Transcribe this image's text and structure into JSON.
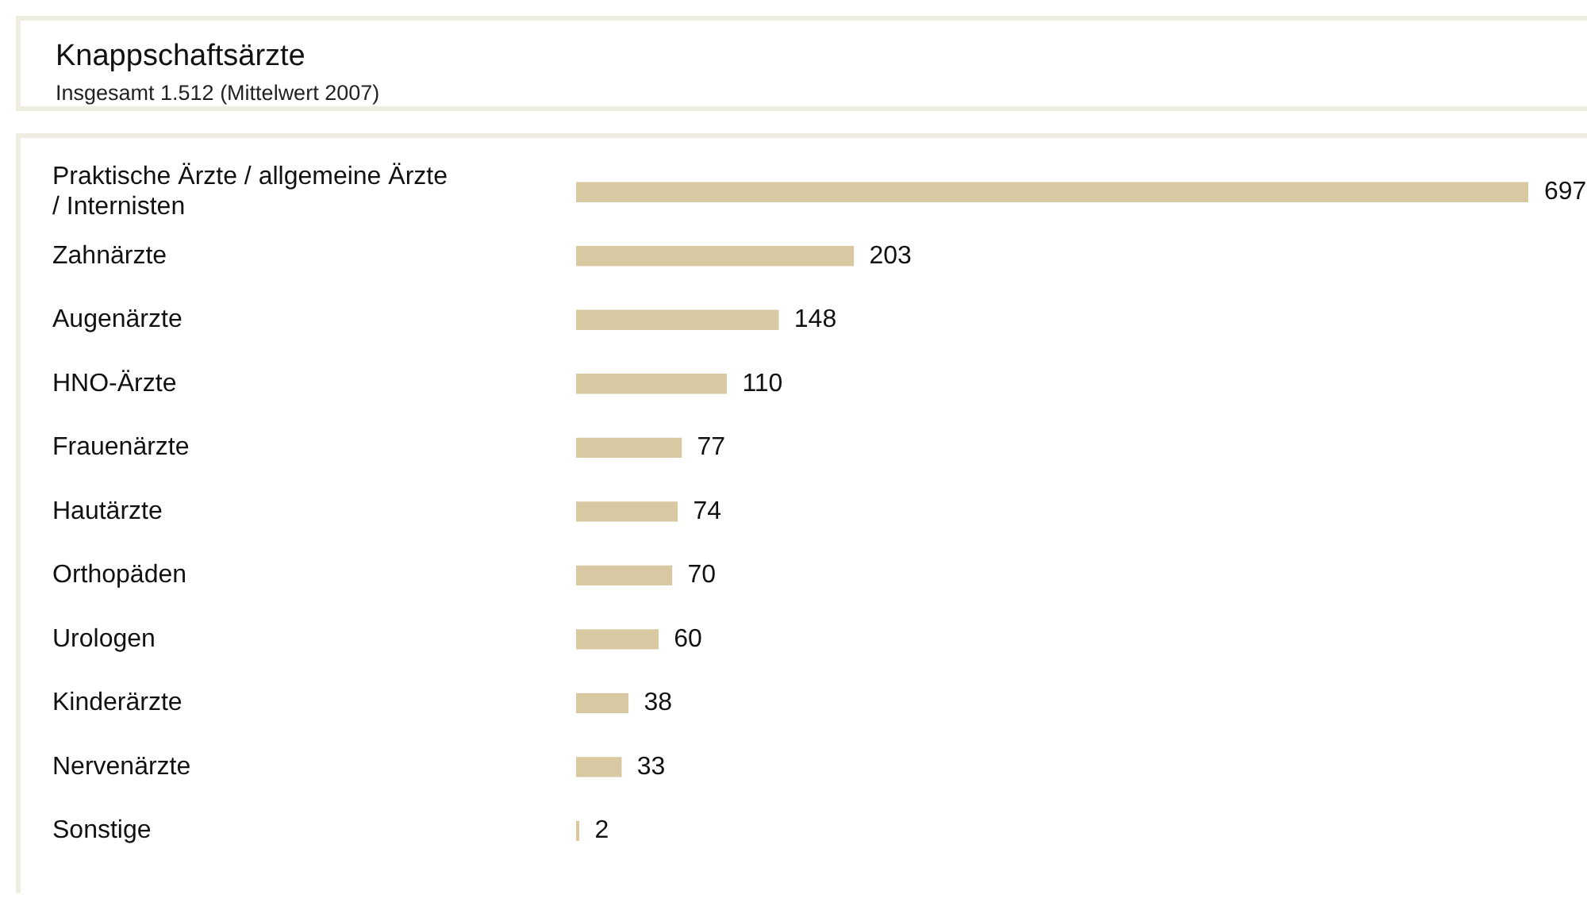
{
  "chart_data": {
    "type": "bar",
    "orientation": "horizontal",
    "title": "Knappschaftsärzte",
    "subtitle": "Insgesamt 1.512 (Mittelwert 2007)",
    "categories": [
      "Praktische Ärzte / allgemeine Ärzte / Internisten",
      "Zahnärzte",
      "Augenärzte",
      "HNO-Ärzte",
      "Frauenärzte",
      "Hautärzte",
      "Orthopäden",
      "Urologen",
      "Kinderärzte",
      "Nervenärzte",
      "Sonstige"
    ],
    "values": [
      697,
      203,
      148,
      110,
      77,
      74,
      70,
      60,
      38,
      33,
      2
    ],
    "color": "#d9c9a3",
    "data_labels": true,
    "legend": false
  }
}
